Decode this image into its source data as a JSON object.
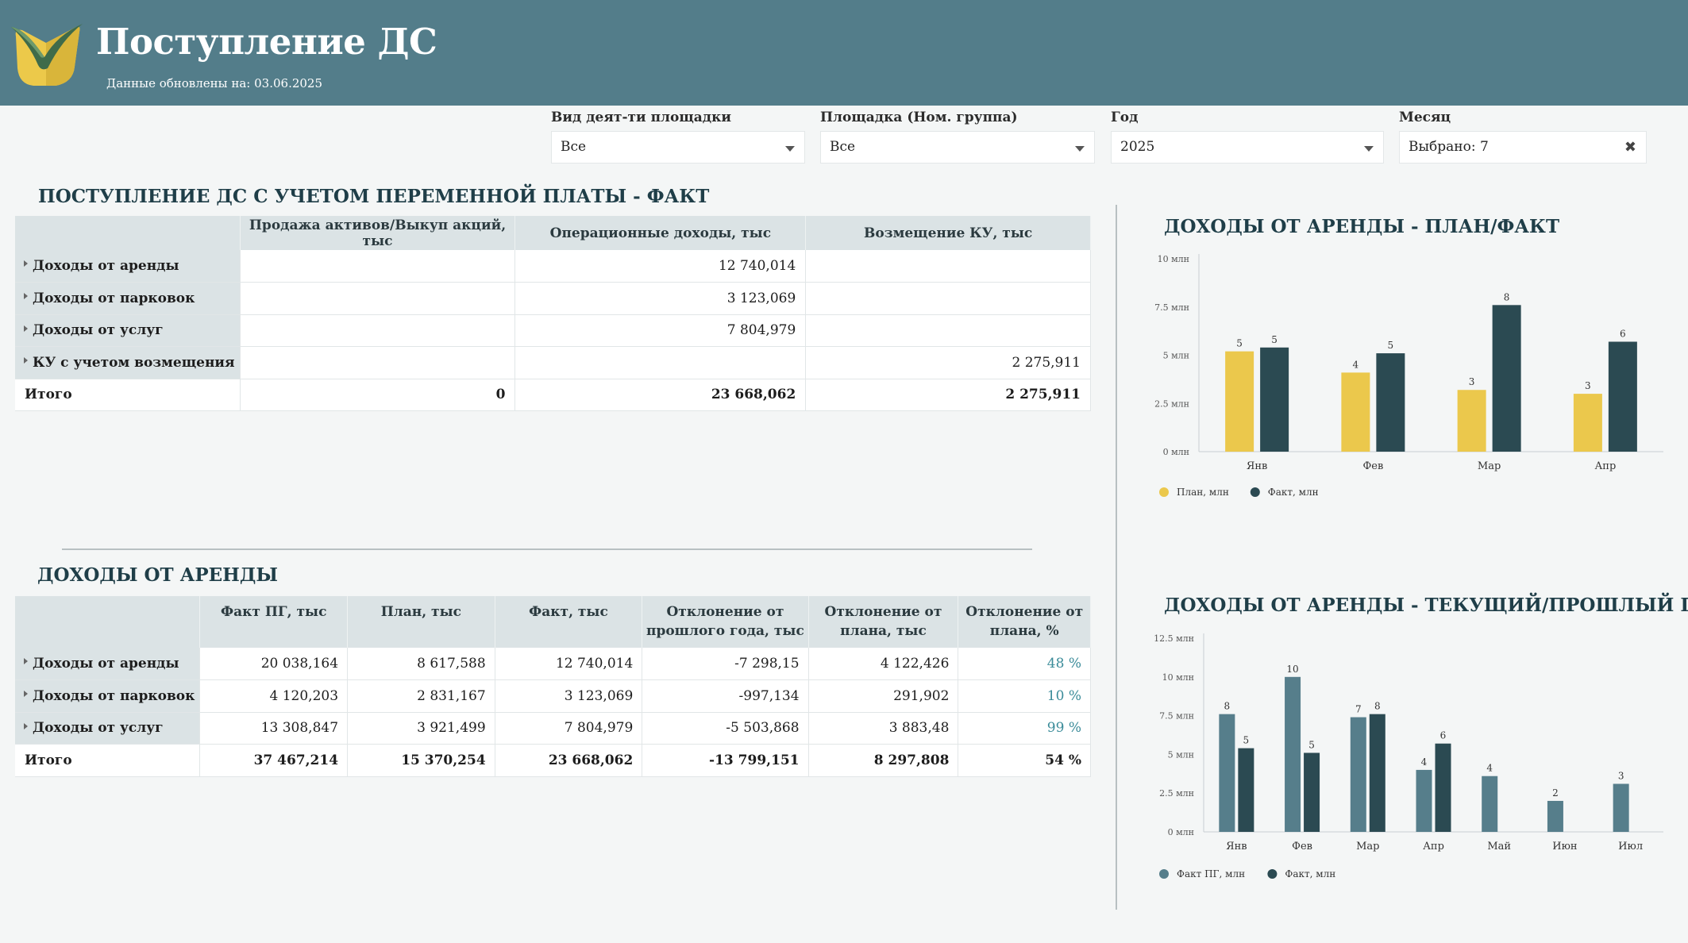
{
  "header": {
    "title": "Поступление ДС",
    "updated": "Данные обновлены на: 03.06.2025"
  },
  "filters": [
    {
      "label": "Вид деят-ти площадки",
      "value": "Все",
      "control": "dropdown"
    },
    {
      "label": "Площадка (Ном. группа)",
      "value": "Все",
      "control": "dropdown"
    },
    {
      "label": "Год",
      "value": "2025",
      "control": "dropdown"
    },
    {
      "label": "Месяц",
      "value": "Выбрано: 7",
      "control": "clear"
    }
  ],
  "table1": {
    "title": "ПОСТУПЛЕНИЕ ДС С УЧЕТОМ ПЕРЕМЕННОЙ ПЛАТЫ - ФАКТ",
    "columns": [
      "",
      "Продажа активов/Выкуп акций, тыс",
      "Операционные доходы, тыс",
      "Возмещение КУ, тыс"
    ],
    "rows": [
      [
        "Доходы от аренды",
        "",
        "12 740,014",
        ""
      ],
      [
        "Доходы от парковок",
        "",
        "3 123,069",
        ""
      ],
      [
        "Доходы от услуг",
        "",
        "7 804,979",
        ""
      ],
      [
        "КУ с учетом возмещения",
        "",
        "",
        "2 275,911"
      ]
    ],
    "total": [
      "Итого",
      "0",
      "23 668,062",
      "2 275,911"
    ]
  },
  "table2": {
    "title": "ДОХОДЫ ОТ АРЕНДЫ",
    "columns": [
      "",
      "Факт ПГ, тыс",
      "План, тыс",
      "Факт, тыс",
      "Отклонение от прошлого года, тыс",
      "Отклонение от плана, тыс",
      "Отклонение от плана, %"
    ],
    "rows": [
      [
        "Доходы от аренды",
        "20 038,164",
        "8 617,588",
        "12 740,014",
        "-7 298,15",
        "4 122,426",
        "48 %"
      ],
      [
        "Доходы от парковок",
        "4 120,203",
        "2 831,167",
        "3 123,069",
        "-997,134",
        "291,902",
        "10 %"
      ],
      [
        "Доходы от услуг",
        "13 308,847",
        "3 921,499",
        "7 804,979",
        "-5 503,868",
        "3 883,48",
        "99 %"
      ]
    ],
    "total": [
      "Итого",
      "37 467,214",
      "15 370,254",
      "23 668,062",
      "-13 799,151",
      "8 297,808",
      "54 %"
    ]
  },
  "colors": {
    "header": "#537d8a",
    "plan": "#ebc84c",
    "fact": "#2b4a52",
    "fact_pg": "#567e8b",
    "pct": "#3a8b99"
  },
  "chart_data": [
    {
      "type": "bar",
      "title": "ДОХОДЫ ОТ АРЕНДЫ - ПЛАН/ФАКТ",
      "categories": [
        "Янв",
        "Фев",
        "Мар",
        "Апр"
      ],
      "series": [
        {
          "name": "План, млн",
          "values": [
            5.2,
            4.1,
            3.2,
            3.0
          ],
          "labels": [
            "5",
            "4",
            "3",
            "3"
          ],
          "color": "#ebc84c"
        },
        {
          "name": "Факт, млн",
          "values": [
            5.4,
            5.1,
            7.6,
            5.7
          ],
          "labels": [
            "5",
            "5",
            "8",
            "6"
          ],
          "color": "#2b4a52"
        }
      ],
      "yticks": [
        "0 млн",
        "2.5 млн",
        "5 млн",
        "7.5 млн",
        "10 млн"
      ],
      "ylim": [
        0,
        10
      ],
      "legend": "bottom-left"
    },
    {
      "type": "bar",
      "title": "ДОХОДЫ ОТ АРЕНДЫ - ТЕКУЩИЙ/ПРОШЛЫЙ ГОД",
      "categories": [
        "Янв",
        "Фев",
        "Мар",
        "Апр",
        "Май",
        "Июн",
        "Июл"
      ],
      "series": [
        {
          "name": "Факт ПГ, млн",
          "values": [
            7.6,
            10.0,
            7.4,
            4.0,
            3.6,
            2.0,
            3.1
          ],
          "labels": [
            "8",
            "10",
            "7",
            "4",
            "4",
            "2",
            "3"
          ],
          "color": "#567e8b"
        },
        {
          "name": "Факт, млн",
          "values": [
            5.4,
            5.1,
            7.6,
            5.7,
            null,
            null,
            null
          ],
          "labels": [
            "5",
            "5",
            "8",
            "6",
            "",
            "",
            ""
          ],
          "color": "#2b4a52"
        }
      ],
      "yticks": [
        "0 млн",
        "2.5 млн",
        "5 млн",
        "7.5 млн",
        "10 млн",
        "12.5 млн"
      ],
      "ylim": [
        0,
        12.5
      ],
      "legend": "bottom-left"
    }
  ]
}
